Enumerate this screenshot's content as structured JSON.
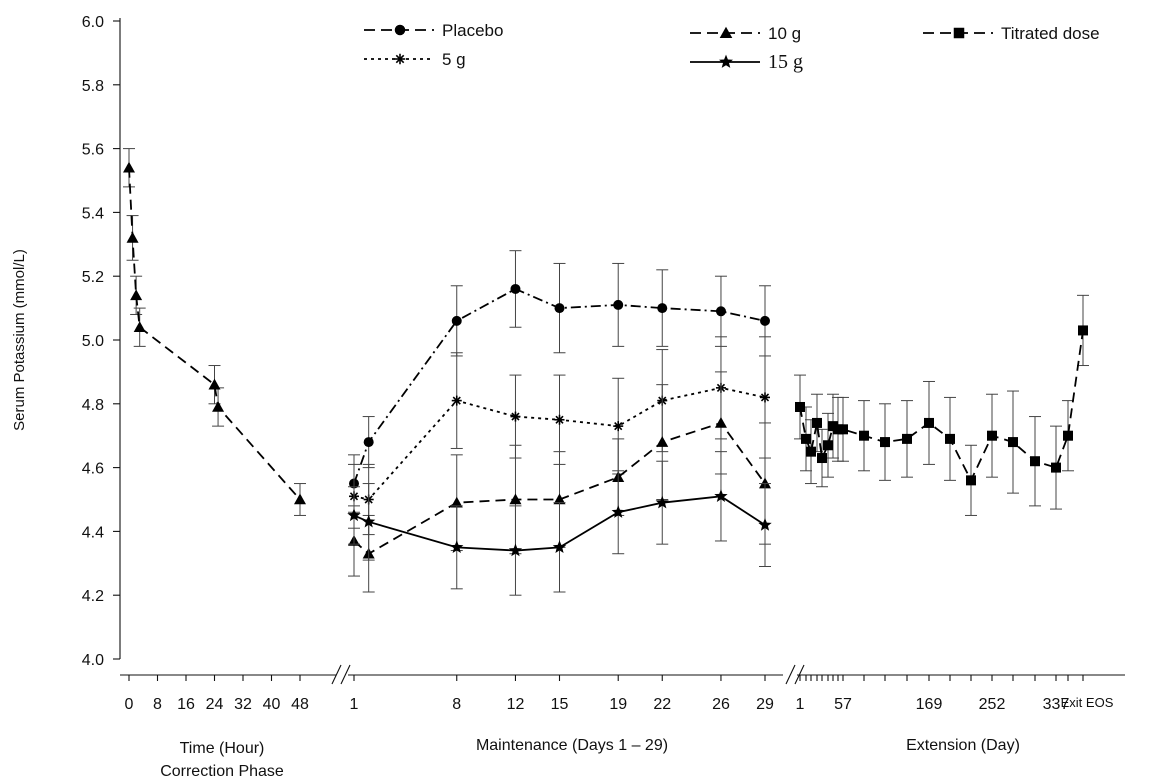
{
  "chart_data": {
    "type": "line",
    "ylabel": "Serum Potassium (mmol/L)",
    "ylim": [
      4.0,
      6.0
    ],
    "yticks": [
      "4.0",
      "4.2",
      "4.4",
      "4.6",
      "4.8",
      "5.0",
      "5.2",
      "5.4",
      "5.6",
      "5.8",
      "6.0"
    ],
    "panels": [
      {
        "id": "correction",
        "xlabel_line1": "Time (Hour)",
        "xlabel_line2": "Correction Phase",
        "xticks": [
          "0",
          "8",
          "16",
          "24",
          "32",
          "40",
          "48"
        ],
        "xlim": [
          0,
          48
        ]
      },
      {
        "id": "maintenance",
        "xlabel": "Maintenance (Days 1 – 29)",
        "xticks": [
          "1",
          "8",
          "12",
          "15",
          "19",
          "22",
          "26",
          "29"
        ],
        "xlim": [
          1,
          29
        ]
      },
      {
        "id": "extension",
        "xlabel": "Extension (Day)",
        "xticks": [
          "1",
          "57",
          "169",
          "252",
          "337",
          "Exit EOS"
        ]
      }
    ],
    "series": [
      {
        "name": "Placebo",
        "panel": "maintenance",
        "style": "dashdot",
        "marker": "circle",
        "x": [
          1,
          2,
          8,
          12,
          15,
          19,
          22,
          26,
          29
        ],
        "y": [
          4.55,
          4.68,
          5.06,
          5.16,
          5.1,
          5.11,
          5.1,
          5.09,
          5.06
        ],
        "err": [
          0.09,
          0.08,
          0.11,
          0.12,
          0.14,
          0.13,
          0.12,
          0.11,
          0.11
        ]
      },
      {
        "name": "5 g",
        "panel": "maintenance",
        "style": "dotted",
        "marker": "asterisk",
        "x": [
          1,
          2,
          8,
          12,
          15,
          19,
          22,
          26,
          29
        ],
        "y": [
          4.51,
          4.5,
          4.81,
          4.76,
          4.75,
          4.73,
          4.81,
          4.85,
          4.82
        ],
        "err": [
          0.1,
          0.11,
          0.15,
          0.13,
          0.14,
          0.15,
          0.16,
          0.16,
          0.19
        ]
      },
      {
        "name": "10 g",
        "panel": "maintenance",
        "style": "dashed",
        "marker": "triangle",
        "x": [
          1,
          2,
          8,
          12,
          15,
          19,
          22,
          26,
          29
        ],
        "y": [
          4.37,
          4.33,
          4.49,
          4.5,
          4.5,
          4.57,
          4.68,
          4.74,
          4.55
        ],
        "err": [
          0.11,
          0.12,
          0.15,
          0.17,
          0.15,
          0.12,
          0.18,
          0.16,
          0.19
        ]
      },
      {
        "name": "15 g",
        "panel": "maintenance",
        "style": "solid",
        "marker": "star",
        "x": [
          1,
          2,
          8,
          12,
          15,
          19,
          22,
          26,
          29
        ],
        "y": [
          4.45,
          4.43,
          4.35,
          4.34,
          4.35,
          4.46,
          4.49,
          4.51,
          4.42
        ],
        "err": [
          0.09,
          0.12,
          0.13,
          0.14,
          0.14,
          0.13,
          0.13,
          0.14,
          0.13
        ]
      },
      {
        "name": "Correction (10 g)",
        "panel": "correction",
        "style": "dashed",
        "marker": "triangle",
        "x": [
          0,
          1,
          2,
          3,
          24,
          25,
          48
        ],
        "y": [
          5.54,
          5.32,
          5.14,
          5.04,
          4.86,
          4.79,
          4.5
        ],
        "err": [
          0.06,
          0.07,
          0.06,
          0.06,
          0.06,
          0.06,
          0.05
        ]
      },
      {
        "name": "Titrated dose",
        "panel": "extension",
        "style": "dashed",
        "marker": "square",
        "x": [
          1,
          8,
          15,
          22,
          29,
          36,
          43,
          50,
          57,
          85,
          113,
          141,
          169,
          197,
          225,
          252,
          280,
          309,
          337,
          355,
          "Exit EOS"
        ],
        "y": [
          4.79,
          4.69,
          4.65,
          4.74,
          4.63,
          4.67,
          4.73,
          4.72,
          4.72,
          4.7,
          4.68,
          4.69,
          4.74,
          4.69,
          4.56,
          4.7,
          4.68,
          4.62,
          4.6,
          4.7,
          5.03
        ],
        "err": [
          0.1,
          0.1,
          0.1,
          0.09,
          0.09,
          0.1,
          0.1,
          0.1,
          0.1,
          0.11,
          0.12,
          0.12,
          0.13,
          0.13,
          0.11,
          0.13,
          0.16,
          0.14,
          0.13,
          0.11,
          0.11
        ]
      }
    ],
    "legend": {
      "placement": "top",
      "entries": [
        "Placebo",
        "10 g",
        "Titrated dose",
        "5 g",
        "15 g"
      ]
    }
  }
}
